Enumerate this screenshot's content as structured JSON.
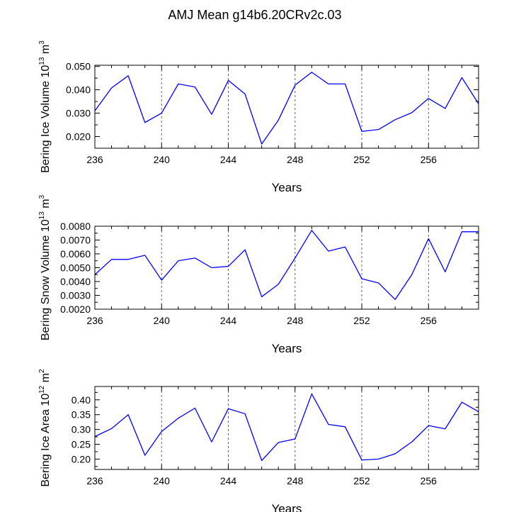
{
  "title": "AMJ Mean g14b6.20CRv2c.03",
  "chart_data": [
    {
      "type": "line",
      "title": "",
      "xlabel": "Years",
      "ylabel": "Bering Ice Volume 10",
      "ylabel_exp": "13",
      "ylabel_unit": " m",
      "ylabel_unit_exp": "3",
      "xlim": [
        236,
        259
      ],
      "ylim": [
        0.015,
        0.0505
      ],
      "xticks": [
        236,
        240,
        244,
        248,
        252,
        256
      ],
      "xtick_labels": [
        "236",
        "240",
        "244",
        "248",
        "252",
        "256"
      ],
      "yticks": [
        0.02,
        0.03,
        0.04,
        0.05
      ],
      "ytick_labels": [
        "0.020",
        "0.030",
        "0.040",
        "0.050"
      ],
      "grid": "vertical-dashed",
      "x": [
        236,
        237,
        238,
        239,
        240,
        241,
        242,
        243,
        244,
        245,
        246,
        247,
        248,
        249,
        250,
        251,
        252,
        253,
        254,
        255,
        256,
        257,
        258,
        259
      ],
      "series": [
        {
          "values": [
            0.031,
            0.0408,
            0.046,
            0.026,
            0.03,
            0.0425,
            0.0412,
            0.0295,
            0.044,
            0.0382,
            0.0168,
            0.027,
            0.042,
            0.0475,
            0.0425,
            0.0425,
            0.0222,
            0.023,
            0.0272,
            0.0302,
            0.0363,
            0.032,
            0.0452,
            0.034
          ]
        }
      ]
    },
    {
      "type": "line",
      "title": "",
      "xlabel": "Years",
      "ylabel": "Bering Snow Volume 10",
      "ylabel_exp": "13",
      "ylabel_unit": " m",
      "ylabel_unit_exp": "3",
      "xlim": [
        236,
        259
      ],
      "ylim": [
        0.002,
        0.008
      ],
      "xticks": [
        236,
        240,
        244,
        248,
        252,
        256
      ],
      "xtick_labels": [
        "236",
        "240",
        "244",
        "248",
        "252",
        "256"
      ],
      "yticks": [
        0.002,
        0.003,
        0.004,
        0.005,
        0.006,
        0.007,
        0.008
      ],
      "ytick_labels": [
        "0.0020",
        "0.0030",
        "0.0040",
        "0.0050",
        "0.0060",
        "0.0070",
        "0.0080"
      ],
      "grid": "vertical-dashed",
      "x": [
        236,
        237,
        238,
        239,
        240,
        241,
        242,
        243,
        244,
        245,
        246,
        247,
        248,
        249,
        250,
        251,
        252,
        253,
        254,
        255,
        256,
        257,
        258,
        259
      ],
      "series": [
        {
          "values": [
            0.0045,
            0.0056,
            0.0056,
            0.0059,
            0.0041,
            0.0055,
            0.0057,
            0.005,
            0.0051,
            0.0063,
            0.0029,
            0.0038,
            0.0057,
            0.0077,
            0.0062,
            0.0065,
            0.0042,
            0.0039,
            0.0027,
            0.0045,
            0.0071,
            0.0047,
            0.0076,
            0.0076
          ]
        }
      ]
    },
    {
      "type": "line",
      "title": "",
      "xlabel": "Years",
      "ylabel": "Bering Ice Area 10",
      "ylabel_exp": "12",
      "ylabel_unit": " m",
      "ylabel_unit_exp": "2",
      "xlim": [
        236,
        259
      ],
      "ylim": [
        0.165,
        0.445
      ],
      "xticks": [
        236,
        240,
        244,
        248,
        252,
        256
      ],
      "xtick_labels": [
        "236",
        "240",
        "244",
        "248",
        "252",
        "256"
      ],
      "yticks": [
        0.2,
        0.25,
        0.3,
        0.35,
        0.4
      ],
      "ytick_labels": [
        "0.20",
        "0.25",
        "0.30",
        "0.35",
        "0.40"
      ],
      "grid": "vertical-dashed",
      "x": [
        236,
        237,
        238,
        239,
        240,
        241,
        242,
        243,
        244,
        245,
        246,
        247,
        248,
        249,
        250,
        251,
        252,
        253,
        254,
        255,
        256,
        257,
        258,
        259
      ],
      "series": [
        {
          "values": [
            0.276,
            0.303,
            0.35,
            0.213,
            0.293,
            0.338,
            0.372,
            0.258,
            0.37,
            0.353,
            0.195,
            0.256,
            0.268,
            0.42,
            0.317,
            0.309,
            0.197,
            0.2,
            0.218,
            0.258,
            0.313,
            0.302,
            0.392,
            0.36
          ]
        }
      ]
    }
  ]
}
